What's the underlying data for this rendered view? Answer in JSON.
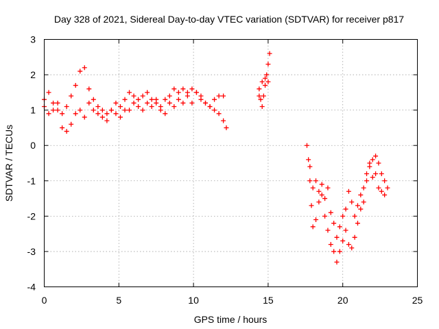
{
  "chart_data": {
    "type": "scatter",
    "title": "Day 328 of 2021, Sidereal Day-to-day VTEC variation (SDTVAR) for receiver p817",
    "xlabel": "GPS time / hours",
    "ylabel": "SDTVAR / TECUs",
    "xlim": [
      0,
      25
    ],
    "ylim": [
      -4,
      3
    ],
    "xticks": [
      0,
      5,
      10,
      15,
      20,
      25
    ],
    "yticks": [
      -4,
      -3,
      -2,
      -1,
      0,
      1,
      2,
      3
    ],
    "xtick_labels": [
      "0",
      "5",
      "10",
      "15",
      "20",
      "25"
    ],
    "ytick_labels": [
      "-4",
      "-3",
      "-2",
      "-1",
      "0",
      "1",
      "2",
      "3"
    ],
    "grid": true,
    "marker": "+",
    "series_color": "#ff0000",
    "series": [
      {
        "name": "SDTVAR",
        "segments": [
          {
            "x": [
              0.0,
              0.3,
              0.6,
              0.9,
              1.2,
              1.5,
              1.8,
              2.1,
              2.4,
              2.7,
              3.0,
              3.3,
              3.6,
              3.9,
              4.2,
              4.5,
              4.8,
              5.1,
              5.4,
              5.7,
              6.0,
              6.3,
              6.6,
              6.9,
              7.2,
              7.5,
              7.8,
              8.1,
              8.4,
              8.7,
              9.0,
              9.3,
              9.6,
              9.9,
              10.2,
              10.5,
              10.8,
              11.1,
              11.4,
              11.7,
              12.0,
              12.2
            ],
            "y": [
              1.3,
              1.5,
              1.2,
              1.0,
              0.9,
              1.1,
              1.4,
              1.7,
              2.1,
              2.2,
              1.6,
              1.3,
              1.1,
              1.0,
              0.9,
              1.0,
              1.2,
              1.1,
              1.3,
              1.5,
              1.4,
              1.3,
              1.4,
              1.5,
              1.3,
              1.2,
              1.1,
              1.3,
              1.4,
              1.6,
              1.5,
              1.6,
              1.5,
              1.6,
              1.5,
              1.4,
              1.2,
              1.1,
              1.0,
              0.9,
              0.7,
              0.5
            ]
          },
          {
            "x": [
              0.0,
              0.3,
              0.6,
              0.9,
              1.2,
              1.5,
              1.8,
              2.1,
              2.4,
              2.7,
              3.0,
              3.3,
              3.6,
              3.9,
              4.2,
              4.5,
              4.8,
              5.1,
              5.4,
              5.7,
              6.0,
              6.3,
              6.6,
              6.9,
              7.2,
              7.5,
              7.8,
              8.1,
              8.4,
              8.7,
              9.0,
              9.3,
              9.6,
              9.9,
              10.2,
              10.5,
              10.8,
              11.1,
              11.4,
              11.7,
              12.0
            ],
            "y": [
              1.1,
              0.9,
              1.0,
              1.2,
              0.5,
              0.4,
              0.6,
              0.9,
              1.0,
              0.8,
              1.2,
              1.0,
              0.9,
              0.8,
              0.7,
              1.0,
              0.9,
              0.8,
              1.0,
              1.0,
              1.2,
              1.1,
              1.0,
              1.2,
              1.1,
              1.3,
              1.0,
              0.9,
              1.2,
              1.1,
              1.3,
              1.2,
              1.4,
              1.2,
              1.5,
              1.3,
              1.2,
              1.1,
              1.3,
              1.4,
              1.4
            ]
          },
          {
            "x": [
              14.4,
              14.5,
              14.6,
              14.7,
              14.8,
              14.9,
              15.0,
              15.1
            ],
            "y": [
              1.4,
              1.3,
              1.1,
              1.4,
              1.7,
              2.0,
              2.3,
              2.6
            ]
          },
          {
            "x": [
              14.4,
              14.6,
              14.8,
              15.0
            ],
            "y": [
              1.6,
              1.8,
              1.9,
              1.8
            ]
          },
          {
            "x": [
              17.6,
              17.7,
              17.8,
              17.9,
              18.0,
              18.2,
              18.4,
              18.6,
              18.8,
              19.0,
              19.2,
              19.4,
              19.6,
              19.8,
              20.0,
              20.2,
              20.4,
              20.6,
              20.8,
              21.0,
              21.2,
              21.4,
              21.6,
              21.8,
              22.0,
              22.2,
              22.4,
              22.6,
              22.8,
              23.0
            ],
            "y": [
              0.0,
              -0.4,
              -1.0,
              -1.7,
              -2.3,
              -2.1,
              -1.6,
              -1.4,
              -2.0,
              -2.4,
              -2.8,
              -3.0,
              -3.3,
              -3.0,
              -2.7,
              -2.4,
              -2.8,
              -2.9,
              -2.6,
              -2.2,
              -1.8,
              -1.6,
              -1.0,
              -0.5,
              -0.4,
              -0.8,
              -1.2,
              -1.3,
              -1.4,
              -1.2
            ]
          },
          {
            "x": [
              17.8,
              18.0,
              18.2,
              18.4,
              18.6,
              18.8,
              19.0,
              19.2,
              19.4,
              19.6,
              19.8,
              20.0,
              20.2,
              20.4,
              20.6,
              20.8,
              21.0,
              21.2,
              21.4,
              21.6,
              21.8,
              22.0,
              22.2,
              22.4,
              22.6,
              22.8
            ],
            "y": [
              -0.6,
              -1.2,
              -1.0,
              -1.3,
              -1.1,
              -1.5,
              -1.2,
              -1.9,
              -2.2,
              -2.6,
              -2.3,
              -2.0,
              -1.8,
              -1.3,
              -1.6,
              -2.0,
              -1.7,
              -1.4,
              -1.2,
              -0.8,
              -0.6,
              -0.9,
              -0.3,
              -0.5,
              -0.8,
              -1.0
            ]
          }
        ]
      }
    ]
  }
}
